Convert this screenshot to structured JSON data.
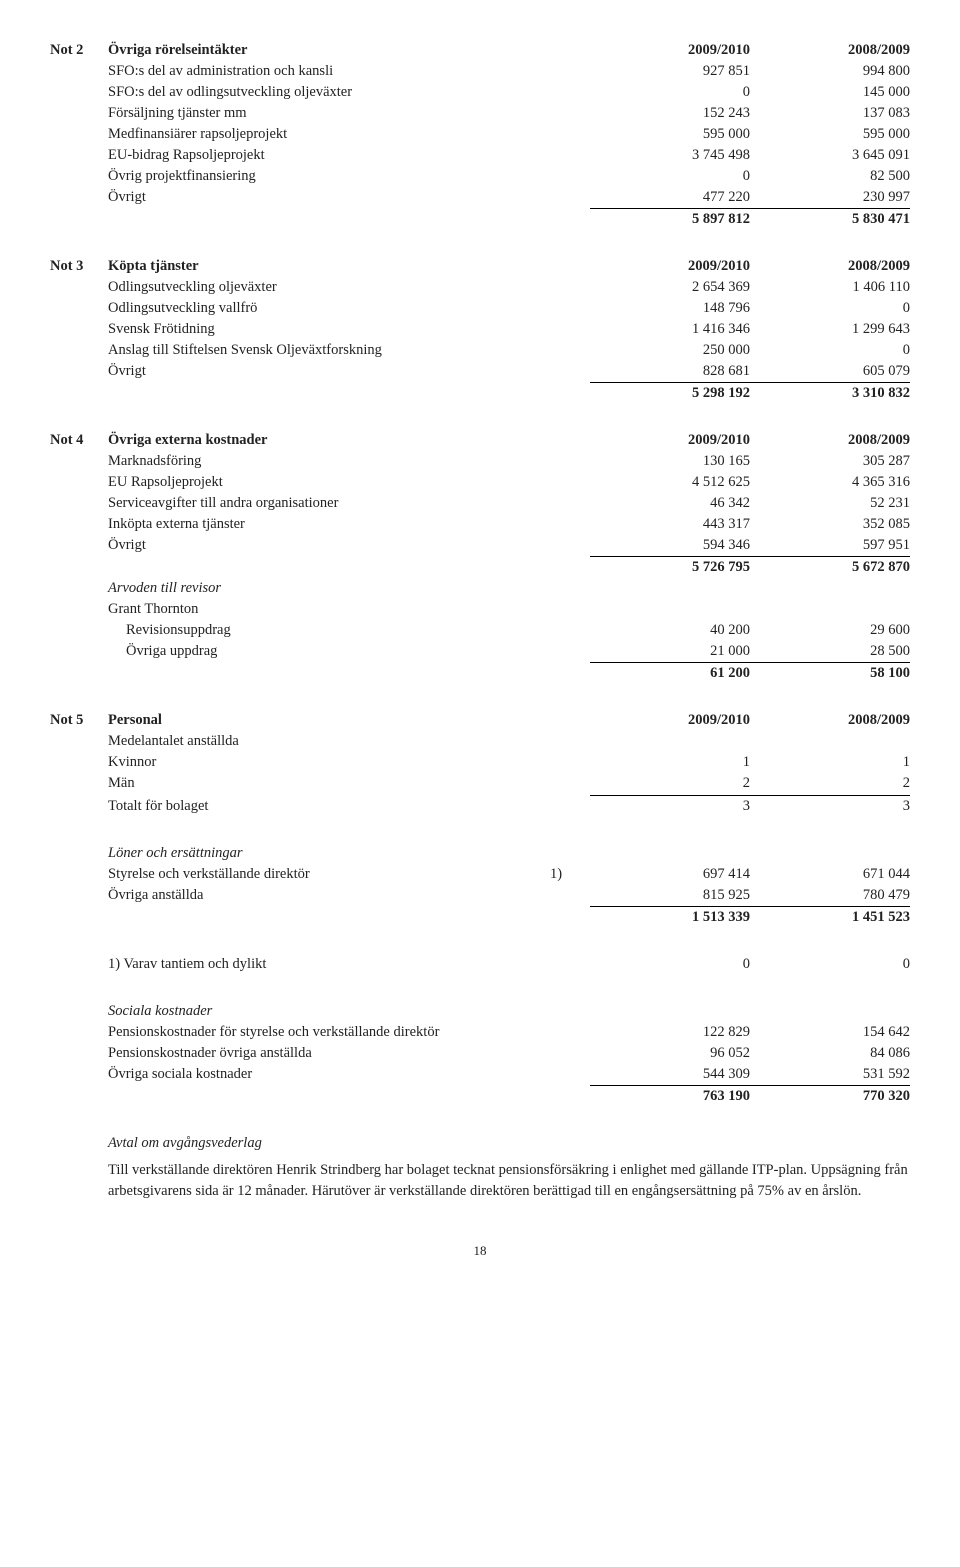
{
  "pageNumber": "18",
  "notes": [
    {
      "id": "Not 2",
      "title": "Övriga rörelseintäkter",
      "y1": "2009/2010",
      "y2": "2008/2009",
      "rows": [
        {
          "l": "SFO:s del av administration och kansli",
          "a": "927 851",
          "b": "994 800"
        },
        {
          "l": "SFO:s del av odlingsutveckling oljeväxter",
          "a": "0",
          "b": "145 000"
        },
        {
          "l": "Försäljning tjänster mm",
          "a": "152 243",
          "b": "137 083"
        },
        {
          "l": "Medfinansiärer rapsoljeprojekt",
          "a": "595 000",
          "b": "595 000"
        },
        {
          "l": "EU-bidrag Rapsoljeprojekt",
          "a": "3 745 498",
          "b": "3 645 091"
        },
        {
          "l": "Övrig projektfinansiering",
          "a": "0",
          "b": "82 500"
        },
        {
          "l": "Övrigt",
          "a": "477 220",
          "b": "230 997",
          "u": true
        }
      ],
      "total": {
        "a": "5 897 812",
        "b": "5 830 471"
      }
    },
    {
      "id": "Not 3",
      "title": "Köpta tjänster",
      "y1": "2009/2010",
      "y2": "2008/2009",
      "rows": [
        {
          "l": "Odlingsutveckling oljeväxter",
          "a": "2 654 369",
          "b": "1 406 110"
        },
        {
          "l": "Odlingsutveckling vallfrö",
          "a": "148 796",
          "b": "0"
        },
        {
          "l": "Svensk Frötidning",
          "a": "1 416 346",
          "b": "1 299 643"
        },
        {
          "l": "Anslag till Stiftelsen Svensk Oljeväxtforskning",
          "a": "250 000",
          "b": "0"
        },
        {
          "l": "Övrigt",
          "a": "828 681",
          "b": "605 079",
          "u": true
        }
      ],
      "total": {
        "a": "5 298 192",
        "b": "3 310 832"
      }
    },
    {
      "id": "Not 4",
      "title": "Övriga externa kostnader",
      "y1": "2009/2010",
      "y2": "2008/2009",
      "rows": [
        {
          "l": "Marknadsföring",
          "a": "130 165",
          "b": "305 287"
        },
        {
          "l": "EU Rapsoljeprojekt",
          "a": "4 512 625",
          "b": "4 365 316"
        },
        {
          "l": "Serviceavgifter till andra organisationer",
          "a": "46 342",
          "b": "52 231"
        },
        {
          "l": "Inköpta externa tjänster",
          "a": "443 317",
          "b": "352 085"
        },
        {
          "l": "Övrigt",
          "a": "594 346",
          "b": "597 951",
          "u": true
        }
      ],
      "total": {
        "a": "5 726 795",
        "b": "5 672 870"
      },
      "sub": {
        "heading": "Arvoden till revisor",
        "sub2": "Grant Thornton",
        "rows": [
          {
            "l": "Revisionsuppdrag",
            "a": "40 200",
            "b": "29 600",
            "indent": true
          },
          {
            "l": "Övriga uppdrag",
            "a": "21 000",
            "b": "28 500",
            "indent": true,
            "u": true
          }
        ],
        "total": {
          "a": "61 200",
          "b": "58 100"
        }
      }
    }
  ],
  "note5": {
    "id": "Not 5",
    "title": "Personal",
    "y1": "2009/2010",
    "y2": "2008/2009",
    "sub1": "Medelantalet anställda",
    "rows1": [
      {
        "l": "Kvinnor",
        "a": "1",
        "b": "1"
      },
      {
        "l": "Män",
        "a": "2",
        "b": "2",
        "u": true
      }
    ],
    "total1": {
      "l": "Totalt för bolaget",
      "a": "3",
      "b": "3"
    },
    "sub2": "Löner och ersättningar",
    "rows2": [
      {
        "l": "Styrelse och verkställande direktör",
        "mid": "1)",
        "a": "697 414",
        "b": "671 044"
      },
      {
        "l": "Övriga anställda",
        "a": "815 925",
        "b": "780 479",
        "u": true
      }
    ],
    "total2": {
      "a": "1 513 339",
      "b": "1 451 523"
    },
    "footnote": {
      "l": "1) Varav tantiem och dylikt",
      "a": "0",
      "b": "0"
    },
    "sub3": "Sociala kostnader",
    "rows3": [
      {
        "l": "Pensionskostnader för styrelse och verkställande direktör",
        "a": "122 829",
        "b": "154 642"
      },
      {
        "l": "Pensionskostnader övriga anställda",
        "a": "96 052",
        "b": "84 086"
      },
      {
        "l": "Övriga sociala kostnader",
        "a": "544 309",
        "b": "531 592",
        "u": true
      }
    ],
    "total3": {
      "a": "763 190",
      "b": "770 320"
    },
    "sub4": "Avtal om avgångsvederlag",
    "para": "Till verkställande direktören Henrik Strindberg har bolaget tecknat pensionsförsäkring i enlighet med gällande ITP-plan. Uppsägning från arbetsgivarens sida är 12 månader. Härutöver är verkställande direktören berättigad till en engångsersättning på 75% av en årslön."
  }
}
